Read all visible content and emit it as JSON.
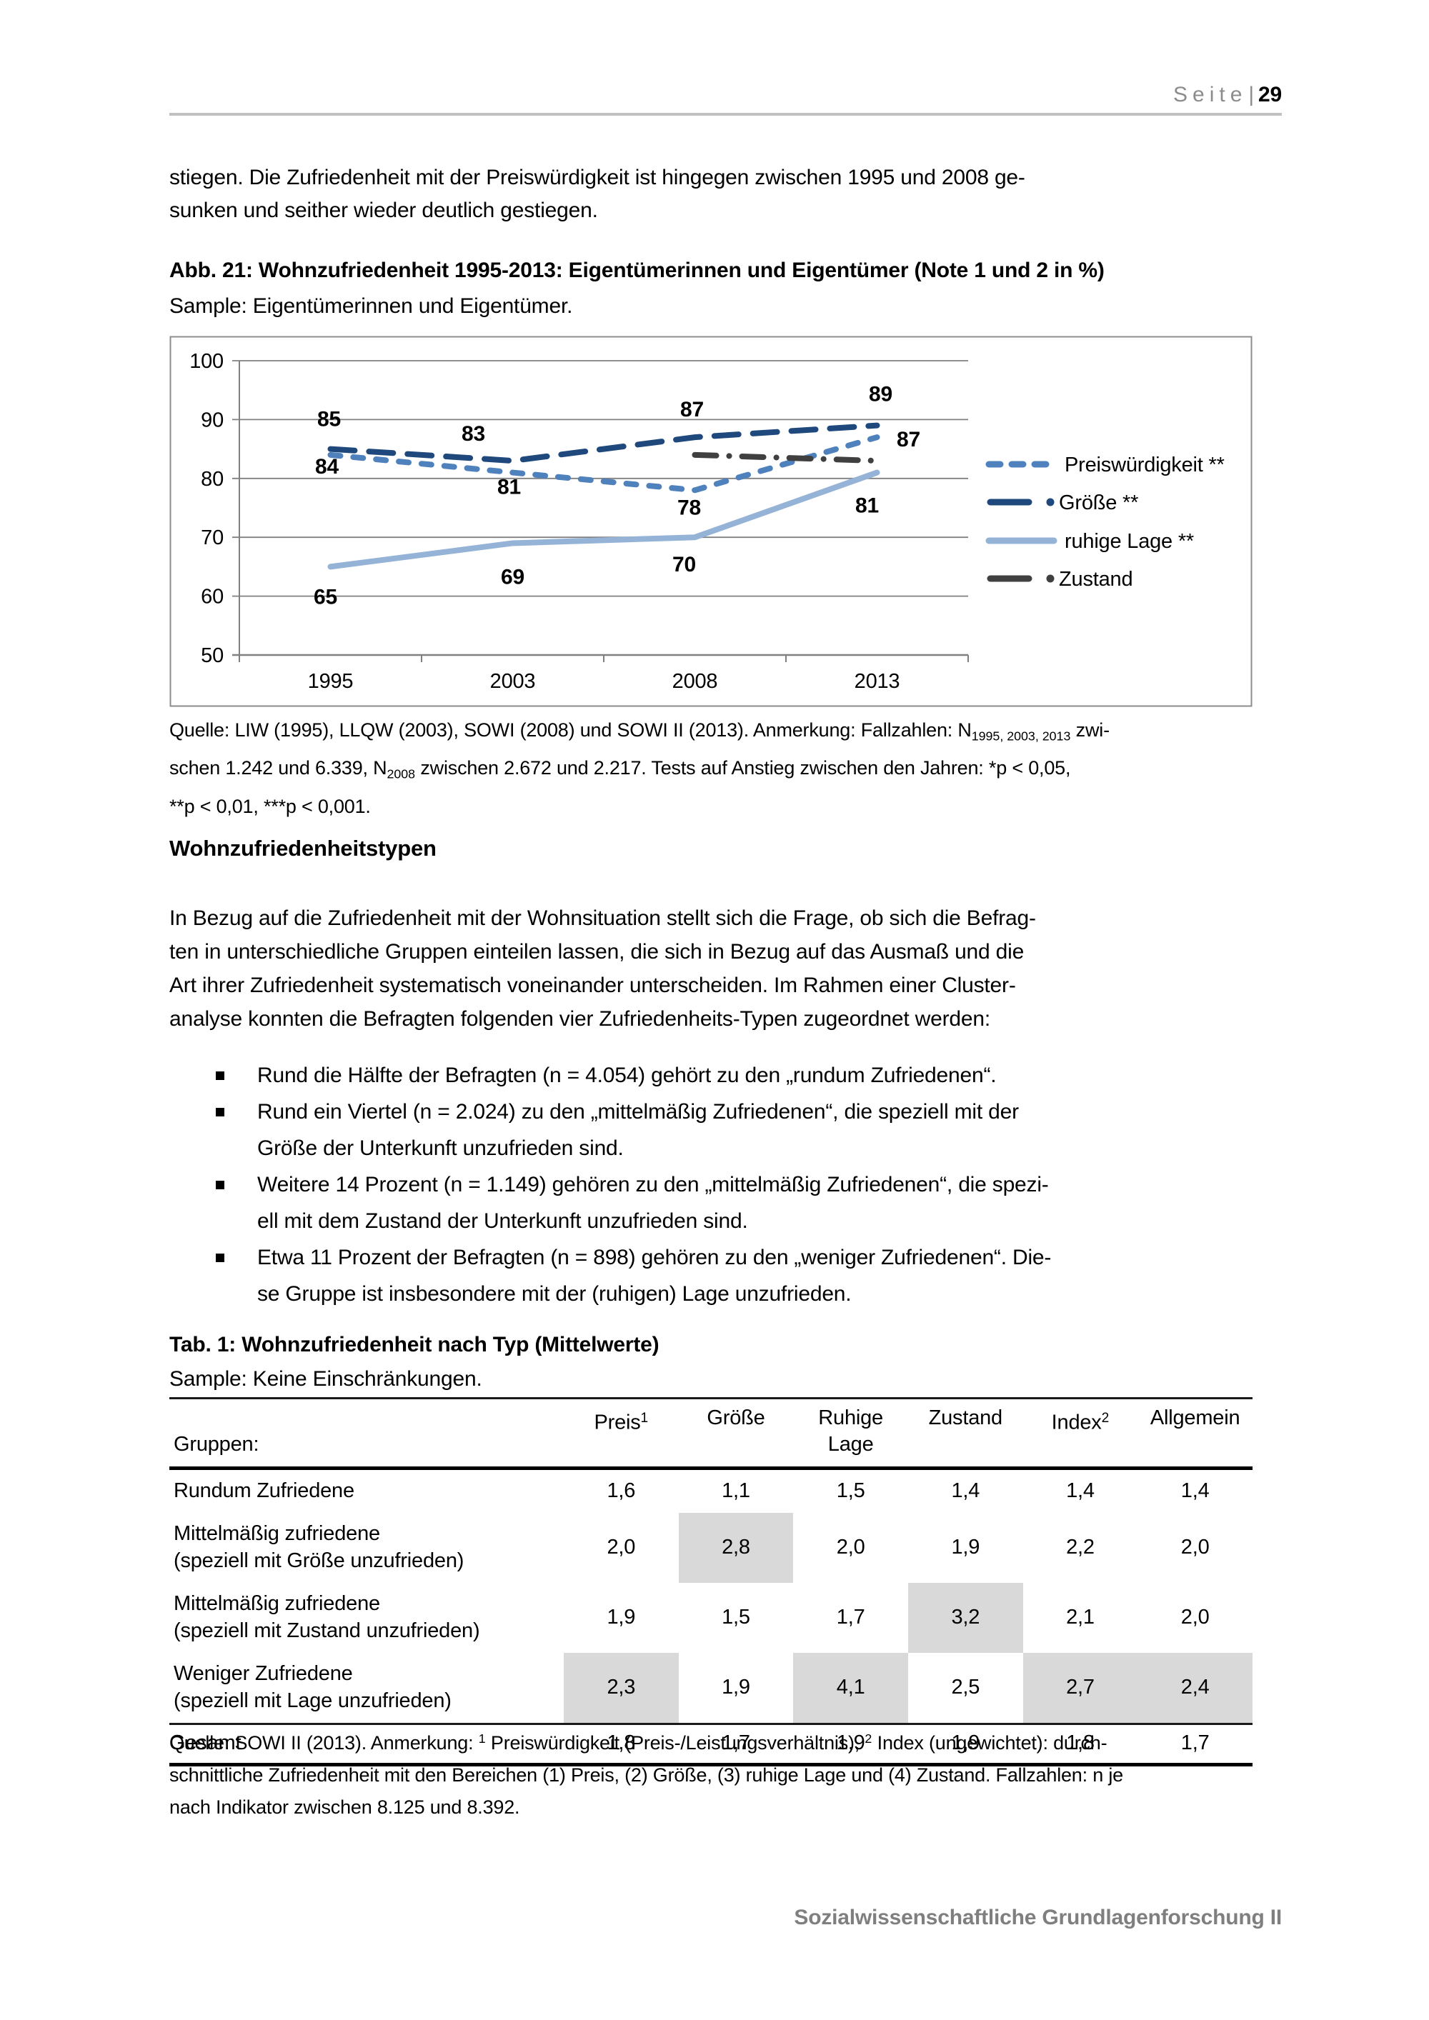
{
  "page": {
    "header": {
      "label": "Seite",
      "separator": "|",
      "number": "29"
    },
    "intro": "stiegen. Die Zufriedenheit mit der Preiswürdigkeit ist hingegen zwischen 1995 und 2008 ge-\nsunken und seither wieder deutlich gestiegen.",
    "footer": "Sozialwissenschaftliche Grundlagenforschung II"
  },
  "figure": {
    "title": "Abb. 21: Wohnzufriedenheit 1995-2013: Eigentümerinnen und Eigentümer (Note 1 und 2 in %)",
    "sample": "Sample: Eigentümerinnen und Eigentümer.",
    "chart_data": {
      "type": "line",
      "x_categories": [
        "1995",
        "2003",
        "2008",
        "2013"
      ],
      "ylim": [
        50,
        100
      ],
      "y_ticks": [
        50,
        60,
        70,
        80,
        90,
        100
      ],
      "grid": true,
      "legend_position": "right",
      "axis_color": "#808080",
      "series": [
        {
          "name": "Preiswürdigkeit **",
          "color": "#4f81bd",
          "style": "dash",
          "values": [
            84,
            81,
            78,
            87
          ],
          "labels": [
            {
              "dx": -5,
              "dy": 26
            },
            {
              "dx": -5,
              "dy": 30
            },
            {
              "dx": -8,
              "dy": 34
            },
            {
              "dx": 44,
              "dy": 13
            }
          ]
        },
        {
          "name": "Größe **",
          "color": "#1f497d",
          "style": "long-dash",
          "values": [
            85,
            83,
            87,
            89
          ],
          "labels": [
            {
              "dx": -2,
              "dy": -32
            },
            {
              "dx": -55,
              "dy": -28
            },
            {
              "dx": -4,
              "dy": -29
            },
            {
              "dx": 5,
              "dy": -34
            }
          ]
        },
        {
          "name": "ruhige Lage **",
          "color": "#95b3d7",
          "style": "solid",
          "values": [
            65,
            69,
            70,
            81
          ],
          "labels": [
            {
              "dx": -7,
              "dy": 52
            },
            {
              "dx": 0,
              "dy": 57
            },
            {
              "dx": -15,
              "dy": 48
            },
            {
              "dx": -14,
              "dy": 56
            }
          ]
        },
        {
          "name": "Zustand",
          "color": "#404040",
          "style": "dash-dot",
          "values": [
            null,
            null,
            84,
            83
          ],
          "labels": [
            null,
            null,
            null,
            null
          ]
        }
      ]
    },
    "source_note_segments": [
      {
        "t": "Quelle: LIW (1995), LLQW (2003), SOWI (2008) und SOWI II (2013). Anmerkung: Fallzahlen: N"
      },
      {
        "sub": "1995, 2003, 2013"
      },
      {
        "t": " zwi-"
      },
      {
        "br": true
      },
      {
        "t": "schen 1.242 und 6.339, N"
      },
      {
        "sub": "2008"
      },
      {
        "t": " zwischen 2.672 und 2.217. Tests auf Anstieg zwischen den Jahren: *p < 0,05,"
      },
      {
        "br": true
      },
      {
        "t": "**p < 0,01, ***p < 0,001."
      }
    ]
  },
  "section": {
    "heading": "Wohnzufriedenheitstypen",
    "paragraph": "In Bezug auf die Zufriedenheit mit der Wohnsituation stellt sich die Frage, ob sich die Befrag-\nten in unterschiedliche Gruppen einteilen lassen, die sich in Bezug auf das Ausmaß und die\nArt ihrer Zufriedenheit systematisch voneinander unterscheiden. Im Rahmen einer Cluster-\nanalyse konnten die Befragten folgenden vier Zufriedenheits-Typen zugeordnet werden:",
    "bullets": [
      "Rund die Hälfte der Befragten (n = 4.054) gehört zu den „rundum Zufriedenen“.",
      "Rund ein Viertel (n = 2.024) zu den „mittelmäßig Zufriedenen“, die speziell mit der\nGröße der Unterkunft unzufrieden sind.",
      "Weitere 14 Prozent (n = 1.149) gehören zu den „mittelmäßig Zufriedenen“, die spezi-\nell mit dem Zustand der Unterkunft unzufrieden sind.",
      "Etwa 11 Prozent der Befragten (n = 898) gehören zu den „weniger Zufriedenen“. Die-\nse Gruppe ist insbesondere mit der (ruhigen) Lage unzufrieden."
    ]
  },
  "table": {
    "title": "Tab. 1: Wohnzufriedenheit nach Typ (Mittelwerte)",
    "sample": "Sample: Keine Einschränkungen.",
    "row_header_label": "Gruppen:",
    "columns": [
      {
        "text": "Preis",
        "sup": "1"
      },
      {
        "text": "Größe"
      },
      {
        "text": "Ruhige\nLage"
      },
      {
        "text": "Zustand"
      },
      {
        "text": "Index",
        "sup": "2"
      },
      {
        "text": "Allgemein"
      }
    ],
    "highlight_color": "#d9d9d9",
    "rows": [
      {
        "label": "Rundum Zufriedene",
        "values": [
          "1,6",
          "1,1",
          "1,5",
          "1,4",
          "1,4",
          "1,4"
        ],
        "highlights": []
      },
      {
        "label": "Mittelmäßig zufriedene\n(speziell mit Größe unzufrieden)",
        "values": [
          "2,0",
          "2,8",
          "2,0",
          "1,9",
          "2,2",
          "2,0"
        ],
        "highlights": [
          1
        ]
      },
      {
        "label": "Mittelmäßig zufriedene\n(speziell mit Zustand unzufrieden)",
        "values": [
          "1,9",
          "1,5",
          "1,7",
          "3,2",
          "2,1",
          "2,0"
        ],
        "highlights": [
          3
        ]
      },
      {
        "label": "Weniger Zufriedene\n(speziell mit Lage unzufrieden)",
        "values": [
          "2,3",
          "1,9",
          "4,1",
          "2,5",
          "2,7",
          "2,4"
        ],
        "highlights": [
          0,
          2,
          4,
          5
        ]
      },
      {
        "label": "Gesamt",
        "values": [
          "1,8",
          "1,7",
          "1,9",
          "1,9",
          "1,8",
          "1,7"
        ],
        "highlights": [],
        "total": true
      }
    ],
    "footnote_segments": [
      {
        "t": "Quelle: SOWI II (2013). Anmerkung: "
      },
      {
        "sup": "1"
      },
      {
        "t": " Preiswürdigkeit (Preis-/Leistungsverhältnis), "
      },
      {
        "sup": "2"
      },
      {
        "t": " Index (ungewichtet): durch-"
      },
      {
        "br": true
      },
      {
        "t": "schnittliche Zufriedenheit mit den Bereichen (1) Preis, (2) Größe, (3) ruhige Lage und (4) Zustand. Fallzahlen: n je"
      },
      {
        "br": true
      },
      {
        "t": "nach Indikator zwischen 8.125 und 8.392."
      }
    ]
  }
}
